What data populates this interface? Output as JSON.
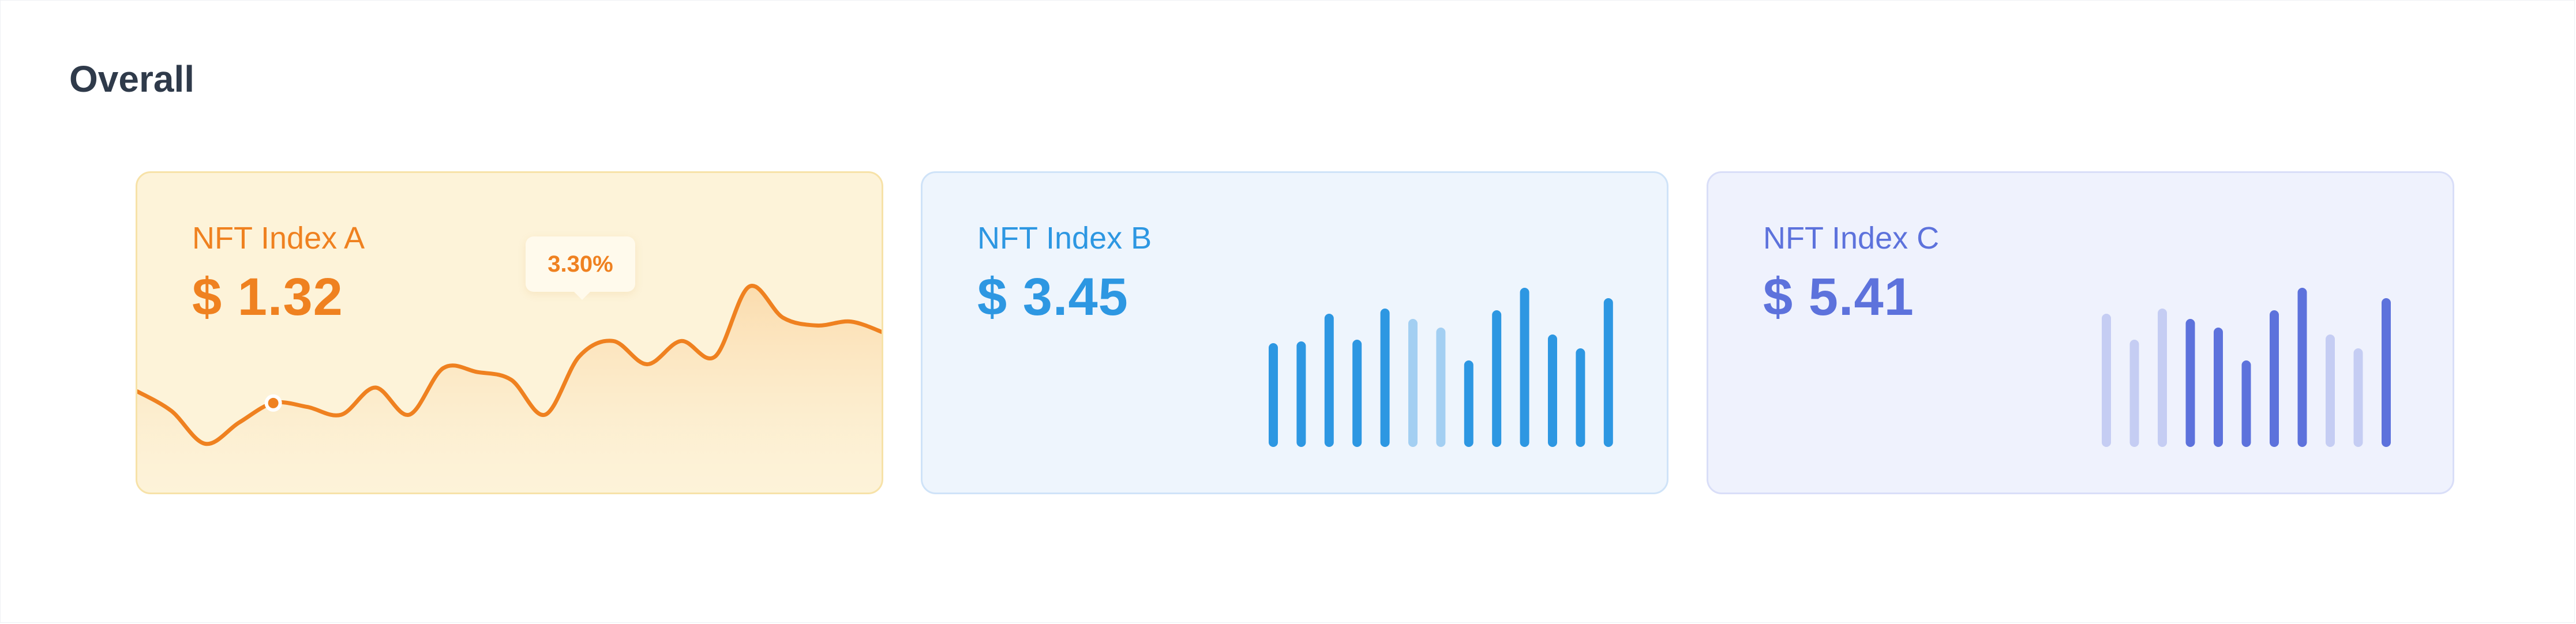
{
  "header": {
    "title": "Overall"
  },
  "cards": [
    {
      "label": "NFT Index A",
      "value": "$ 1.32",
      "tooltip": "3.30%",
      "accent": "#ef8120"
    },
    {
      "label": "NFT Index B",
      "value": "$ 3.45",
      "accent": "#2d97e2",
      "accent_light": "#a3cff2"
    },
    {
      "label": "NFT Index C",
      "value": "$ 5.41",
      "accent": "#5d72dc",
      "accent_light": "#c5cdf3"
    }
  ],
  "chart_data": [
    {
      "type": "area",
      "title": "NFT Index A",
      "values": [
        0.82,
        0.72,
        0.55,
        0.66,
        0.76,
        0.74,
        0.7,
        0.84,
        0.7,
        0.94,
        0.92,
        0.88,
        0.7,
        1.0,
        1.08,
        0.96,
        1.08,
        1.0,
        1.36,
        1.2,
        1.16,
        1.18,
        1.12
      ],
      "highlight_index": 4,
      "highlight_label": "3.30%"
    },
    {
      "type": "bar",
      "title": "NFT Index B",
      "values": [
        0.6,
        0.61,
        0.77,
        0.62,
        0.8,
        0.74,
        0.69,
        0.5,
        0.79,
        0.92,
        0.65,
        0.57,
        0.86
      ],
      "highlighted": [
        true,
        true,
        true,
        true,
        true,
        false,
        false,
        true,
        true,
        true,
        true,
        true,
        true
      ]
    },
    {
      "type": "bar",
      "title": "NFT Index C",
      "values": [
        0.77,
        0.62,
        0.8,
        0.74,
        0.69,
        0.5,
        0.79,
        0.92,
        0.65,
        0.57,
        0.86
      ],
      "highlighted": [
        false,
        false,
        false,
        true,
        true,
        true,
        true,
        true,
        false,
        false,
        true
      ]
    }
  ]
}
